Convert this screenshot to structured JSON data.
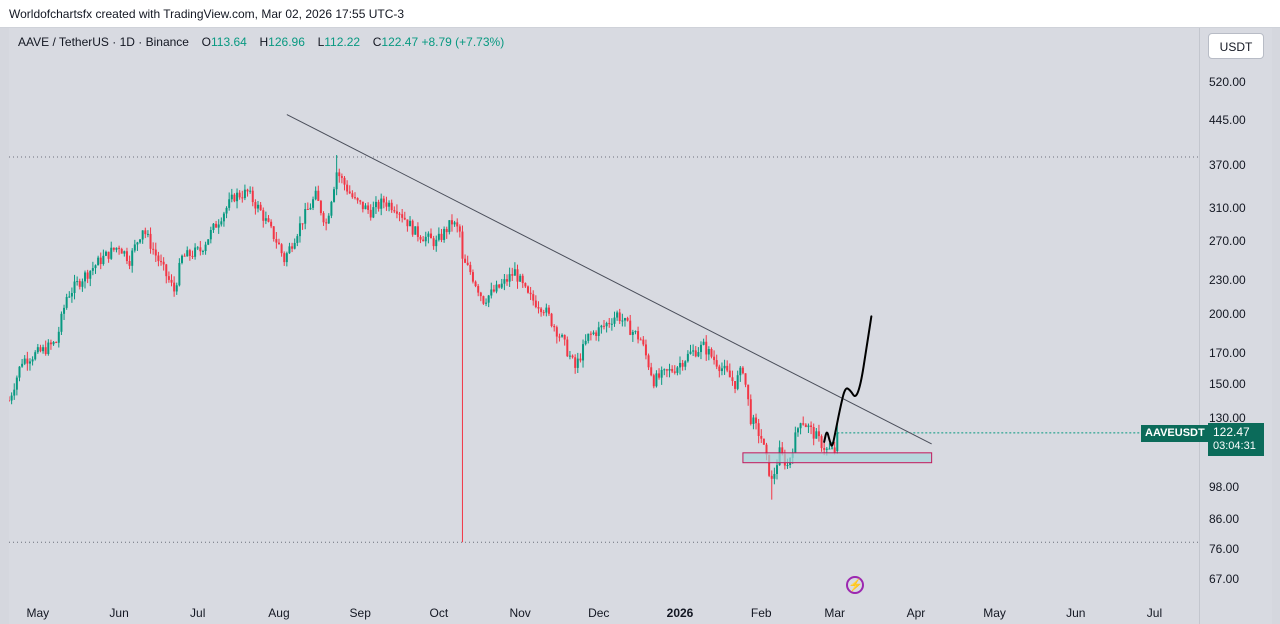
{
  "header": {
    "credit": "Worldofchartsfx created with TradingView.com, Mar 02, 2026 17:55 UTC-3"
  },
  "legend": {
    "symbol": "AAVE / TetherUS · 1D · Binance",
    "open_label": "O",
    "open": "113.64",
    "high_label": "H",
    "high": "126.96",
    "low_label": "L",
    "low": "112.22",
    "close_label": "C",
    "close": "122.47",
    "change": "+8.79 (+7.73%)"
  },
  "currency_button": "USDT",
  "price_badge": {
    "ticker": "AAVEUSDT",
    "price": "122.47",
    "countdown": "03:04:31"
  },
  "colors": {
    "up": "#089981",
    "down": "#f23645",
    "trendline": "#4a4e5a",
    "zone_border": "#c2185b",
    "zone_fill": "#a9d6dc",
    "drawing": "#000000",
    "badge": "#0b6b5a",
    "event": "#9c27b0"
  },
  "chart_data": {
    "type": "candlestick",
    "scale": "log",
    "ylim": [
      62,
      650
    ],
    "y_ticks": [
      "520.00",
      "445.00",
      "370.00",
      "310.00",
      "270.00",
      "230.00",
      "200.00",
      "170.00",
      "150.00",
      "130.00",
      "98.00",
      "86.00",
      "76.00",
      "67.00"
    ],
    "x_ticks": [
      "May",
      "Jun",
      "Jul",
      "Aug",
      "Sep",
      "Oct",
      "Nov",
      "Dec",
      "2026",
      "Feb",
      "Mar",
      "Apr",
      "May",
      "Jun",
      "Jul"
    ],
    "x_tick_dates": [
      "2025-05-01",
      "2025-06-01",
      "2025-07-01",
      "2025-08-01",
      "2025-09-01",
      "2025-10-01",
      "2025-11-01",
      "2025-12-01",
      "2026-01-01",
      "2026-02-01",
      "2026-03-01",
      "2026-04-01",
      "2026-05-01",
      "2026-06-01",
      "2026-07-01"
    ],
    "x_range": [
      "2025-04-20",
      "2026-07-18"
    ],
    "last_bar_date": "2026-03-02",
    "close_anchors": [
      [
        "2025-04-20",
        140
      ],
      [
        "2025-04-25",
        165
      ],
      [
        "2025-05-03",
        172
      ],
      [
        "2025-05-08",
        178
      ],
      [
        "2025-05-12",
        215
      ],
      [
        "2025-05-18",
        232
      ],
      [
        "2025-05-25",
        250
      ],
      [
        "2025-06-01",
        265
      ],
      [
        "2025-06-05",
        250
      ],
      [
        "2025-06-10",
        285
      ],
      [
        "2025-06-15",
        255
      ],
      [
        "2025-06-22",
        220
      ],
      [
        "2025-06-25",
        252
      ],
      [
        "2025-07-02",
        260
      ],
      [
        "2025-07-10",
        300
      ],
      [
        "2025-07-15",
        325
      ],
      [
        "2025-07-20",
        330
      ],
      [
        "2025-07-25",
        305
      ],
      [
        "2025-08-01",
        265
      ],
      [
        "2025-08-03",
        250
      ],
      [
        "2025-08-10",
        295
      ],
      [
        "2025-08-15",
        325
      ],
      [
        "2025-08-19",
        290
      ],
      [
        "2025-08-23",
        360
      ],
      [
        "2025-08-30",
        318
      ],
      [
        "2025-09-05",
        305
      ],
      [
        "2025-09-10",
        318
      ],
      [
        "2025-09-15",
        310
      ],
      [
        "2025-09-22",
        280
      ],
      [
        "2025-09-30",
        268
      ],
      [
        "2025-10-06",
        292
      ],
      [
        "2025-10-09",
        280
      ],
      [
        "2025-10-10",
        248
      ],
      [
        "2025-10-13",
        238
      ],
      [
        "2025-10-18",
        212
      ],
      [
        "2025-10-25",
        225
      ],
      [
        "2025-10-30",
        238
      ],
      [
        "2025-11-04",
        215
      ],
      [
        "2025-11-10",
        205
      ],
      [
        "2025-11-17",
        180
      ],
      [
        "2025-11-22",
        160
      ],
      [
        "2025-11-27",
        182
      ],
      [
        "2025-12-03",
        190
      ],
      [
        "2025-12-08",
        200
      ],
      [
        "2025-12-12",
        190
      ],
      [
        "2025-12-17",
        180
      ],
      [
        "2025-12-22",
        152
      ],
      [
        "2025-12-30",
        160
      ],
      [
        "2026-01-05",
        170
      ],
      [
        "2026-01-10",
        175
      ],
      [
        "2026-01-13",
        168
      ],
      [
        "2026-01-18",
        158
      ],
      [
        "2026-01-22",
        150
      ],
      [
        "2026-01-25",
        160
      ],
      [
        "2026-01-28",
        130
      ],
      [
        "2026-02-01",
        120
      ],
      [
        "2026-02-05",
        100
      ],
      [
        "2026-02-08",
        113
      ],
      [
        "2026-02-11",
        107
      ],
      [
        "2026-02-16",
        130
      ],
      [
        "2026-02-21",
        122
      ],
      [
        "2026-02-26",
        114
      ],
      [
        "2026-03-01",
        113.64
      ],
      [
        "2026-03-02",
        122.47
      ]
    ],
    "extreme_wicks": [
      {
        "date": "2025-08-23",
        "high": 385
      },
      {
        "date": "2025-10-10",
        "low": 78
      },
      {
        "date": "2026-02-05",
        "low": 93
      }
    ],
    "trendline": {
      "from": [
        "2025-08-04",
        455
      ],
      "to": [
        "2026-04-07",
        117
      ]
    },
    "support_zone": {
      "from": "2026-01-25",
      "to": "2026-04-07",
      "top": 112.8,
      "bottom": 108.3
    },
    "dotted_levels": [
      382,
      78
    ],
    "projection_path": [
      [
        "2026-02-25",
        118
      ],
      [
        "2026-02-26",
        124
      ],
      [
        "2026-02-27",
        119
      ],
      [
        "2026-02-28",
        115
      ],
      [
        "2026-03-01",
        121
      ],
      [
        "2026-03-03",
        135
      ],
      [
        "2026-03-05",
        148
      ],
      [
        "2026-03-07",
        146
      ],
      [
        "2026-03-09",
        141
      ],
      [
        "2026-03-11",
        150
      ],
      [
        "2026-03-13",
        172
      ],
      [
        "2026-03-15",
        198
      ]
    ]
  }
}
